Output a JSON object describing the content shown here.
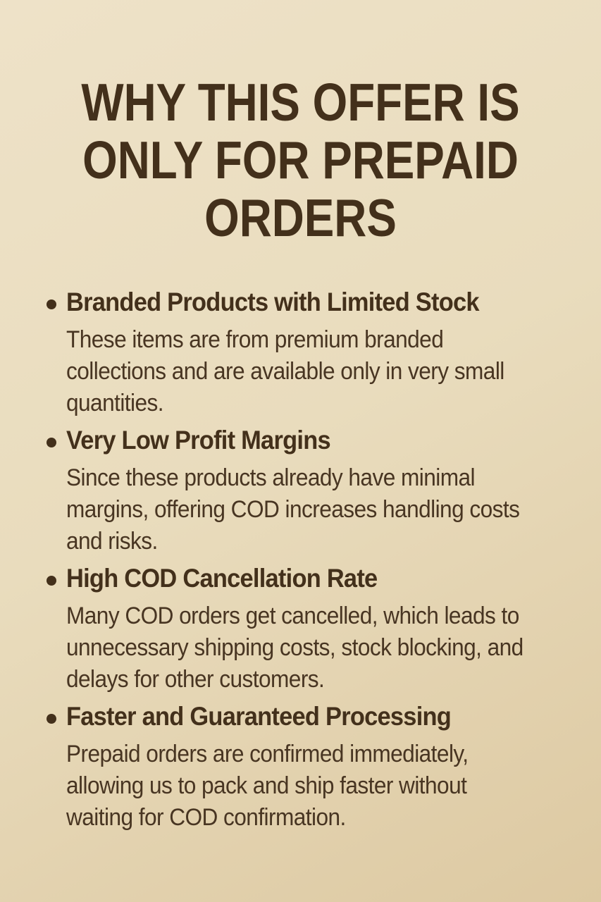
{
  "colors": {
    "background_top": "#eee2c8",
    "background_mid": "#e9dcbd",
    "background_bottom": "#ddc9a2",
    "text_dark": "#43301b",
    "text_body": "#483522"
  },
  "title": {
    "lines": [
      "WHY THIS OFFER IS",
      "ONLY FOR PREPAID",
      "ORDERS"
    ]
  },
  "bullets": [
    {
      "heading": "Branded Products with Limited Stock",
      "body": "These items are from premium branded\ncollections and are available only in very small\nquantities."
    },
    {
      "heading": "Very Low Profit Margins",
      "body": "Since these products already have minimal\nmargins, offering COD increases handling costs\nand risks."
    },
    {
      "heading": "High COD Cancellation Rate",
      "body": "Many COD orders get cancelled, which leads to\nunnecessary shipping costs, stock blocking, and\ndelays for other customers."
    },
    {
      "heading": "Faster and Guaranteed Processing",
      "body": "Prepaid orders are confirmed immediately,\nallowing us to pack and ship faster without\nwaiting for COD confirmation."
    }
  ]
}
